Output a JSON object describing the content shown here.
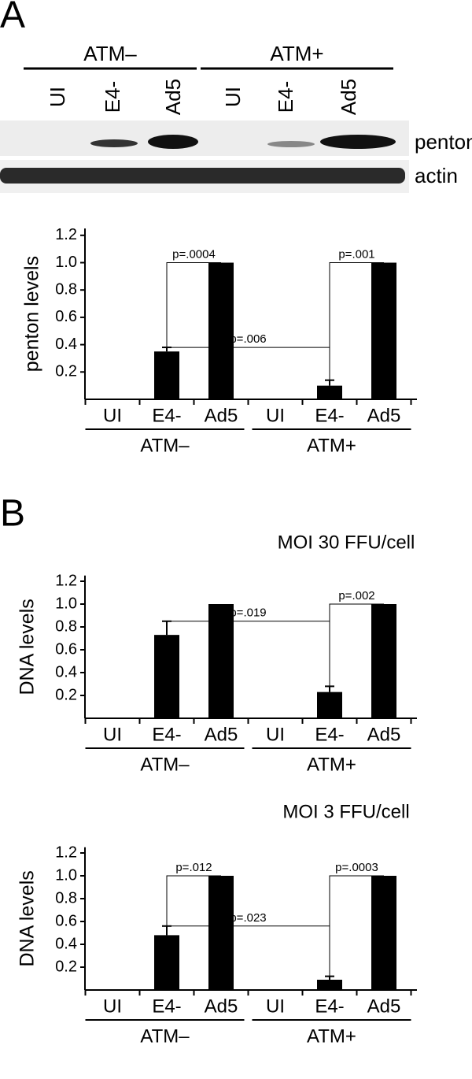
{
  "panels": [
    "A",
    "B"
  ],
  "blot": {
    "groups": [
      "ATM–",
      "ATM+"
    ],
    "lanes": [
      "UI",
      "E4-",
      "Ad5",
      "UI",
      "E4-",
      "Ad5"
    ],
    "rows": [
      "penton",
      "actin"
    ]
  },
  "chart_data": [
    {
      "type": "bar",
      "y_label": "penton levels",
      "categories": [
        "UI",
        "E4-",
        "Ad5",
        "UI",
        "E4-",
        "Ad5"
      ],
      "groups": [
        "ATM–",
        "ATM+"
      ],
      "values": [
        0,
        0.35,
        1,
        0,
        0.1,
        1
      ],
      "errors": [
        null,
        0.03,
        null,
        null,
        0.04,
        null
      ],
      "color": "#000000",
      "ylim": [
        0,
        1.25
      ],
      "yticks": [
        0.2,
        0.4,
        0.6,
        0.8,
        {
          "value": 1,
          "label": "1.0"
        },
        1.2
      ],
      "annotations": [
        {
          "text": "p=.0004",
          "between": [
            1,
            2
          ]
        },
        {
          "text": "p=.001",
          "between": [
            4,
            5
          ]
        },
        {
          "text": "p=.006",
          "between": [
            1,
            4
          ]
        }
      ]
    },
    {
      "type": "bar",
      "title": "MOI 30 FFU/cell",
      "y_label": "DNA levels",
      "categories": [
        "UI",
        "E4-",
        "Ad5",
        "UI",
        "E4-",
        "Ad5"
      ],
      "groups": [
        "ATM–",
        "ATM+"
      ],
      "values": [
        0,
        0.73,
        1,
        0,
        0.23,
        1
      ],
      "errors": [
        null,
        0.12,
        null,
        null,
        0.05,
        null
      ],
      "color": "#000000",
      "ylim": [
        0,
        1.25
      ],
      "yticks": [
        0.2,
        0.4,
        0.6,
        0.8,
        {
          "value": 1,
          "label": "1.0"
        },
        1.2
      ],
      "annotations": [
        {
          "text": "p=.019",
          "between": [
            1,
            4
          ]
        },
        {
          "text": "p=.002",
          "between": [
            4,
            5
          ]
        }
      ]
    },
    {
      "type": "bar",
      "title": "MOI 3 FFU/cell",
      "y_label": "DNA levels",
      "categories": [
        "UI",
        "E4-",
        "Ad5",
        "UI",
        "E4-",
        "Ad5"
      ],
      "groups": [
        "ATM–",
        "ATM+"
      ],
      "values": [
        0,
        0.48,
        1,
        0,
        0.09,
        1
      ],
      "errors": [
        null,
        0.08,
        null,
        null,
        0.03,
        null
      ],
      "color": "#000000",
      "ylim": [
        0,
        1.25
      ],
      "yticks": [
        0.2,
        0.4,
        0.6,
        0.8,
        {
          "value": 1,
          "label": "1.0"
        },
        1.2
      ],
      "annotations": [
        {
          "text": "p=.012",
          "between": [
            1,
            2
          ]
        },
        {
          "text": "p=.023",
          "between": [
            1,
            4
          ]
        },
        {
          "text": "p=.0003",
          "between": [
            4,
            5
          ]
        }
      ]
    }
  ]
}
